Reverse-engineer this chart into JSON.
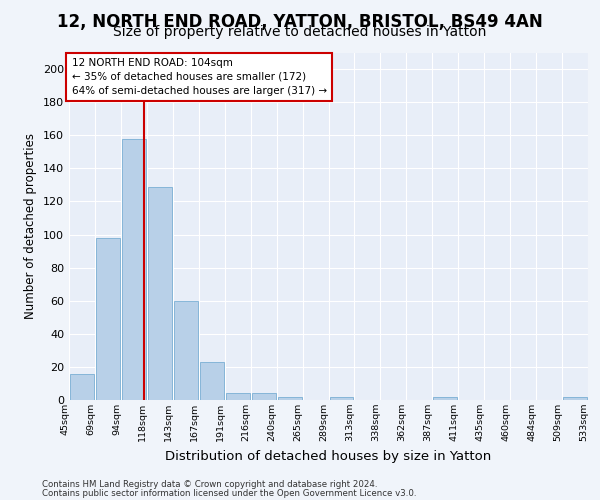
{
  "title1": "12, NORTH END ROAD, YATTON, BRISTOL, BS49 4AN",
  "title2": "Size of property relative to detached houses in Yatton",
  "xlabel": "Distribution of detached houses by size in Yatton",
  "ylabel": "Number of detached properties",
  "bin_labels": [
    "45sqm",
    "69sqm",
    "94sqm",
    "118sqm",
    "143sqm",
    "167sqm",
    "191sqm",
    "216sqm",
    "240sqm",
    "265sqm",
    "289sqm",
    "313sqm",
    "338sqm",
    "362sqm",
    "387sqm",
    "411sqm",
    "435sqm",
    "460sqm",
    "484sqm",
    "509sqm",
    "533sqm"
  ],
  "bar_values": [
    16,
    98,
    158,
    129,
    60,
    23,
    4,
    4,
    2,
    0,
    2,
    0,
    0,
    0,
    2,
    0,
    0,
    0,
    0,
    2
  ],
  "bar_color": "#b8d0e8",
  "bar_edge_color": "#7aafd4",
  "vline_x": 2.375,
  "vline_color": "#cc0000",
  "annotation_line1": "12 NORTH END ROAD: 104sqm",
  "annotation_line2": "← 35% of detached houses are smaller (172)",
  "annotation_line3": "64% of semi-detached houses are larger (317) →",
  "annotation_box_color": "#ffffff",
  "annotation_box_edge": "#cc0000",
  "ylim": [
    0,
    210
  ],
  "yticks": [
    0,
    20,
    40,
    60,
    80,
    100,
    120,
    140,
    160,
    180,
    200
  ],
  "background_color": "#f0f4fa",
  "plot_bg_color": "#e8eef8",
  "footer1": "Contains HM Land Registry data © Crown copyright and database right 2024.",
  "footer2": "Contains public sector information licensed under the Open Government Licence v3.0.",
  "grid_color": "#ffffff",
  "title1_fontsize": 12,
  "title2_fontsize": 10,
  "xlabel_fontsize": 9.5,
  "ylabel_fontsize": 8.5
}
